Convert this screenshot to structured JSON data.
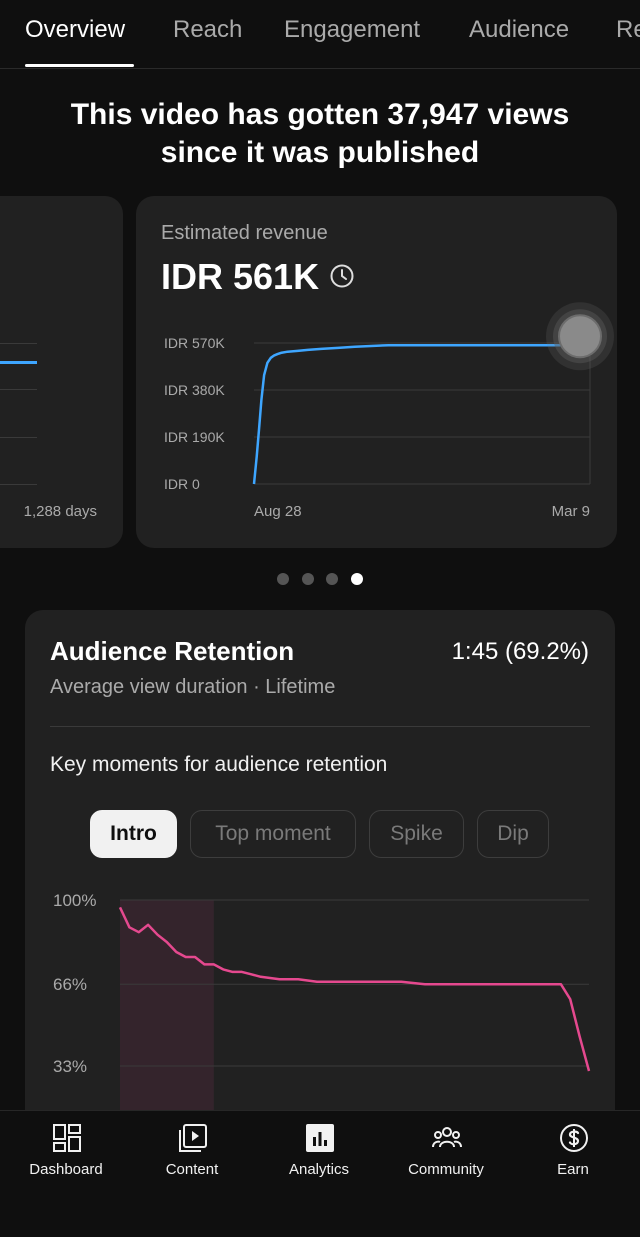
{
  "tabs": [
    {
      "label": "Overview",
      "active": true
    },
    {
      "label": "Reach"
    },
    {
      "label": "Engagement"
    },
    {
      "label": "Audience"
    },
    {
      "label": "Re"
    }
  ],
  "headline": {
    "line1": "This video has gotten 37,947 views",
    "line2": "since it was published"
  },
  "left_card": {
    "x_label": "1,288 days"
  },
  "revenue_card": {
    "label": "Estimated revenue",
    "value": "IDR 561K",
    "icon": "clock-icon",
    "chart_data": {
      "type": "line",
      "y_ticks": [
        "IDR 570K",
        "IDR 380K",
        "IDR 190K",
        "IDR 0"
      ],
      "ylim": [
        0,
        570
      ],
      "x_ticks": [
        "Aug 28",
        "Mar 9"
      ],
      "series": [
        {
          "color": "#3ea6ff",
          "x": [
            0,
            0.8,
            1.5,
            2.2,
            3,
            4,
            5,
            6,
            7,
            8,
            10,
            13,
            16,
            20,
            25,
            30,
            40,
            50,
            60,
            70,
            80,
            90,
            100
          ],
          "y": [
            0,
            110,
            220,
            340,
            440,
            490,
            510,
            520,
            525,
            530,
            535,
            538,
            542,
            546,
            550,
            555,
            561,
            561,
            561,
            561,
            561,
            561,
            561
          ]
        }
      ]
    }
  },
  "pager": {
    "count": 4,
    "active_index": 3
  },
  "retention": {
    "title": "Audience Retention",
    "value": "1:45 (69.2%)",
    "subtitle": "Average view duration · Lifetime",
    "key_moments_label": "Key moments for audience retention",
    "chips": [
      {
        "label": "Intro",
        "selected": true
      },
      {
        "label": "Top moment"
      },
      {
        "label": "Spike"
      },
      {
        "label": "Dip"
      }
    ],
    "chart_data": {
      "type": "line",
      "y_ticks": [
        "100%",
        "66%",
        "33%"
      ],
      "ylim": [
        33,
        100
      ],
      "intro_highlight_range": [
        0,
        20
      ],
      "series": [
        {
          "color": "#e5498f",
          "x": [
            0,
            2,
            4,
            6,
            8,
            10,
            12,
            14,
            16,
            18,
            20,
            22,
            24,
            26,
            28,
            30,
            34,
            38,
            42,
            46,
            50,
            55,
            60,
            65,
            70,
            75,
            80,
            85,
            88,
            90,
            92,
            94,
            96,
            98,
            100
          ],
          "y": [
            97,
            89,
            87,
            90,
            86,
            83,
            79,
            77,
            77,
            74,
            74,
            72,
            71,
            71,
            70,
            69,
            68,
            68,
            67,
            67,
            67,
            67,
            67,
            66,
            66,
            66,
            66,
            66,
            66,
            66,
            66,
            66,
            60,
            45,
            31
          ]
        }
      ]
    }
  },
  "bottom_nav": [
    {
      "label": "Dashboard",
      "icon": "dashboard-icon"
    },
    {
      "label": "Content",
      "icon": "content-icon"
    },
    {
      "label": "Analytics",
      "icon": "analytics-icon",
      "active": true
    },
    {
      "label": "Community",
      "icon": "community-icon"
    },
    {
      "label": "Earn",
      "icon": "earn-icon"
    }
  ]
}
